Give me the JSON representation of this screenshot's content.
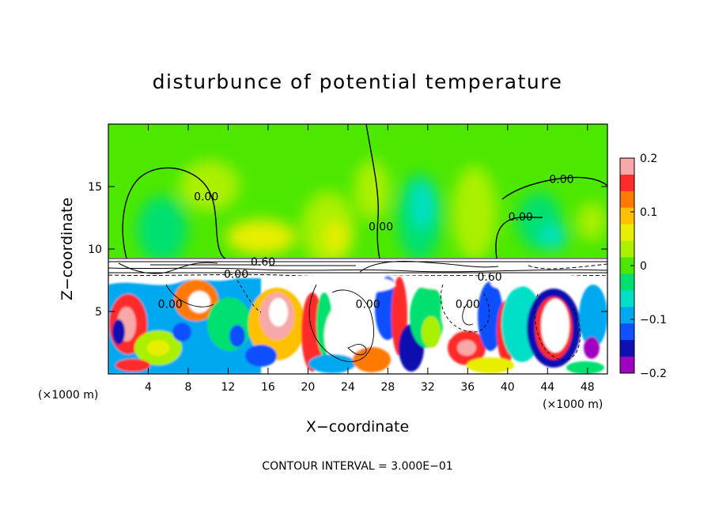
{
  "chart_data": {
    "type": "heatmap",
    "title": "disturbunce of potential temperature",
    "xlabel": "X−coordinate",
    "ylabel": "Z−coordinate",
    "x_unit": "(×1000 m)",
    "z_unit": "(×1000 m)",
    "xlim": [
      0,
      50
    ],
    "ylim": [
      0,
      20
    ],
    "x_ticks": [
      4,
      8,
      12,
      16,
      20,
      24,
      28,
      32,
      36,
      40,
      44,
      48
    ],
    "y_ticks": [
      5,
      10,
      15
    ],
    "colorbar": {
      "range": [
        -0.2,
        0.2
      ],
      "tick_values": [
        0.2,
        0.1,
        0,
        -0.1,
        -0.2
      ],
      "tick_labels": [
        "0.2",
        "0.1",
        "0",
        "−0.1",
        "−0.2"
      ],
      "colors": [
        "#f7a8a8",
        "#ff2a2a",
        "#ff7a00",
        "#ffc000",
        "#e8ee00",
        "#aaf000",
        "#4ce800",
        "#00e070",
        "#00e0c8",
        "#00a8f0",
        "#1050ff",
        "#1010b0",
        "#a000c0"
      ]
    },
    "contour_interval_text": "CONTOUR INTERVAL = 3.000E−01",
    "contour_labels": [
      {
        "text": "0.00",
        "x": 9.8,
        "y": 14.2
      },
      {
        "text": "0.00",
        "x": 27.3,
        "y": 11.8
      },
      {
        "text": "0.00",
        "x": 45.4,
        "y": 15.6
      },
      {
        "text": "0.00",
        "x": 41.3,
        "y": 12.6
      },
      {
        "text": "0.60",
        "x": 15.5,
        "y": 9.0
      },
      {
        "text": "0.00",
        "x": 12.8,
        "y": 8.0
      },
      {
        "text": "0.60",
        "x": 38.2,
        "y": 7.8
      },
      {
        "text": "0.00",
        "x": 6.2,
        "y": 5.6
      },
      {
        "text": "0.00",
        "x": 26.0,
        "y": 5.6
      },
      {
        "text": "0.00",
        "x": 36.0,
        "y": 5.6
      }
    ]
  }
}
